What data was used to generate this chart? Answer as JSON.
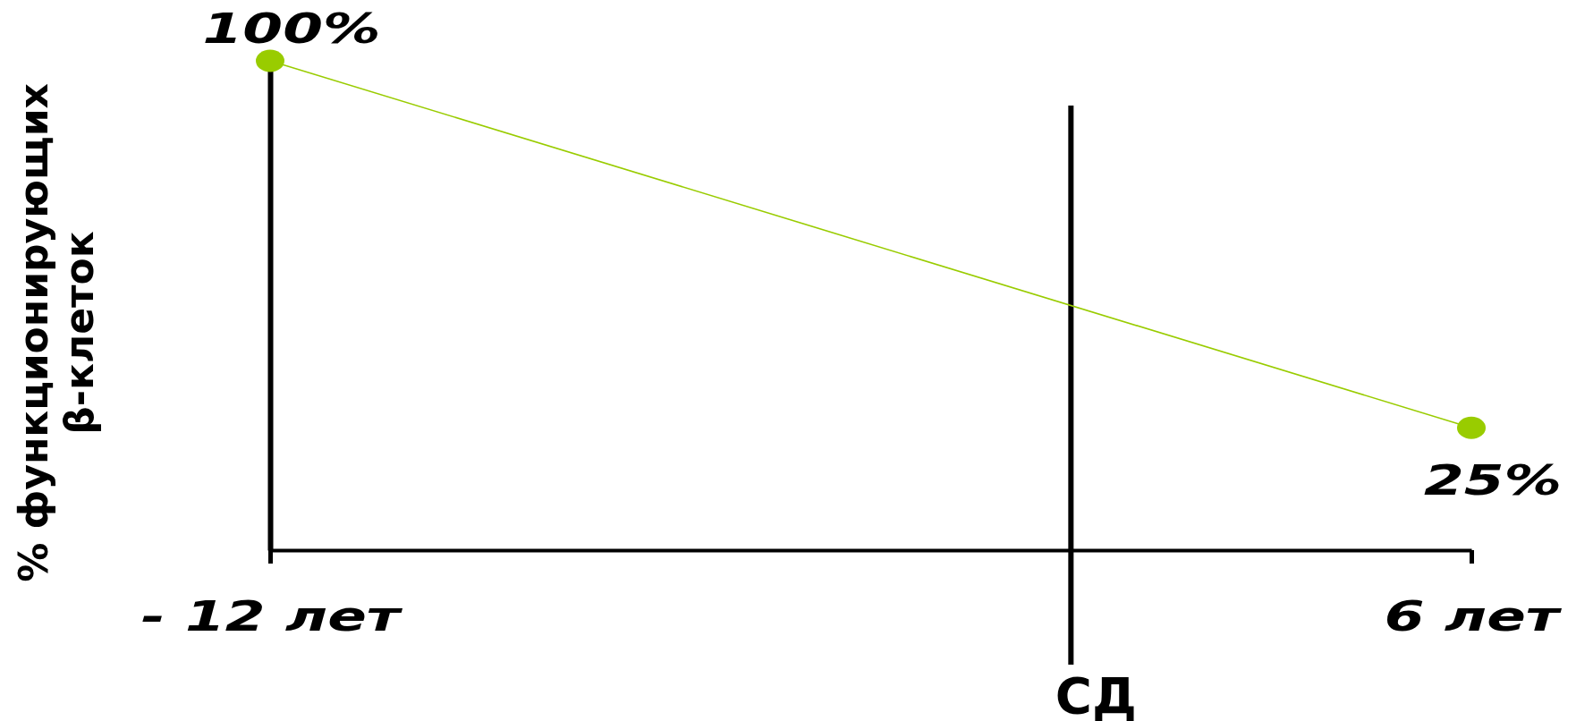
{
  "chart_data": {
    "type": "line",
    "ylabel": "% функционирующих\nβ-клеток",
    "x": [
      -12,
      6
    ],
    "values": [
      100,
      25
    ],
    "color": "#99cc00",
    "value_labels": [
      "100%",
      "25%"
    ],
    "marker": "circle",
    "xlim": [
      -12,
      6
    ],
    "ylim": [
      0,
      100
    ],
    "xticks": [
      {
        "value": -12,
        "label": "- 12 лет"
      },
      {
        "value": 6,
        "label": "6 лет"
      }
    ],
    "ref_lines": [
      {
        "axis": "x",
        "value": 0,
        "label": "СД"
      }
    ],
    "tick_labels": "x"
  }
}
